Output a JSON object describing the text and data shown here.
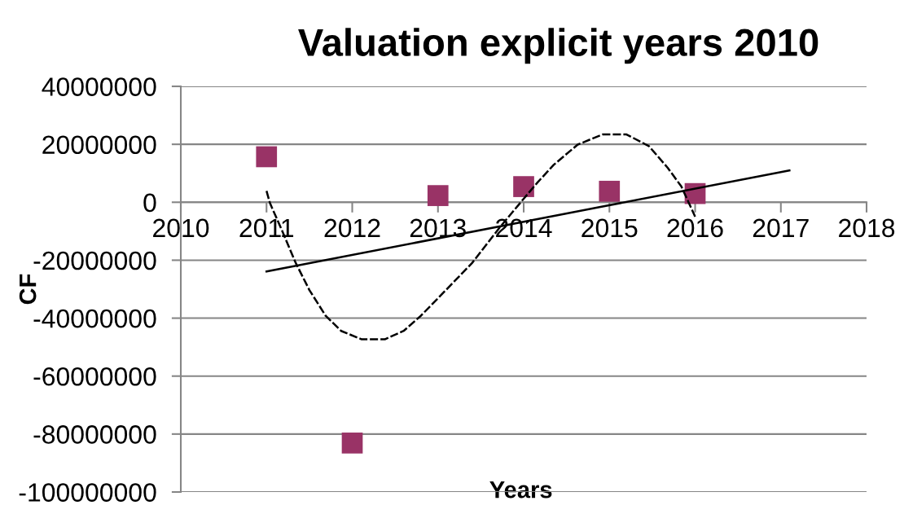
{
  "chart_data": {
    "type": "scatter",
    "title": "Valuation explicit years 2010",
    "xlabel": "Years",
    "ylabel": "CF",
    "xlim": [
      2010,
      2018
    ],
    "xticks": [
      2010,
      2011,
      2012,
      2013,
      2014,
      2015,
      2016,
      2017,
      2018
    ],
    "ylim": [
      -100000000,
      40000000
    ],
    "yticks": [
      -100000000,
      -80000000,
      -60000000,
      -40000000,
      -20000000,
      0,
      20000000,
      40000000
    ],
    "grid": "y",
    "series": [
      {
        "type": "scatter",
        "color": "#993366",
        "marker": "square",
        "x": [
          2011,
          2012,
          2013,
          2014,
          2015,
          2016
        ],
        "values": [
          15700000,
          -83100000,
          2300000,
          5400000,
          3800000,
          3000000
        ]
      },
      {
        "type": "line",
        "color": "#000000",
        "marker": "none",
        "line_style": "dashed",
        "x": [
          2011.0,
          2011.04,
          2011.18,
          2011.34,
          2011.5,
          2011.69,
          2011.87,
          2012.11,
          2012.38,
          2012.6,
          2012.8,
          2013.08,
          2013.4,
          2013.72,
          2014.0,
          2014.16,
          2014.35,
          2014.63,
          2014.92,
          2015.2,
          2015.46,
          2015.68,
          2015.84,
          2016.0
        ],
        "values": [
          3900000,
          -300000,
          -9700000,
          -20900000,
          -30300000,
          -39200000,
          -44400000,
          -47300000,
          -47300000,
          -44400000,
          -39200000,
          -30700000,
          -20900000,
          -8700000,
          1200000,
          6800000,
          12900000,
          19900000,
          23400000,
          23400000,
          19400000,
          11900000,
          5400000,
          -5000000
        ]
      },
      {
        "type": "line",
        "color": "#000000",
        "marker": "none",
        "line_style": "solid",
        "x": [
          2011,
          2017.1
        ],
        "values": [
          -23900000,
          11000000
        ]
      }
    ]
  }
}
